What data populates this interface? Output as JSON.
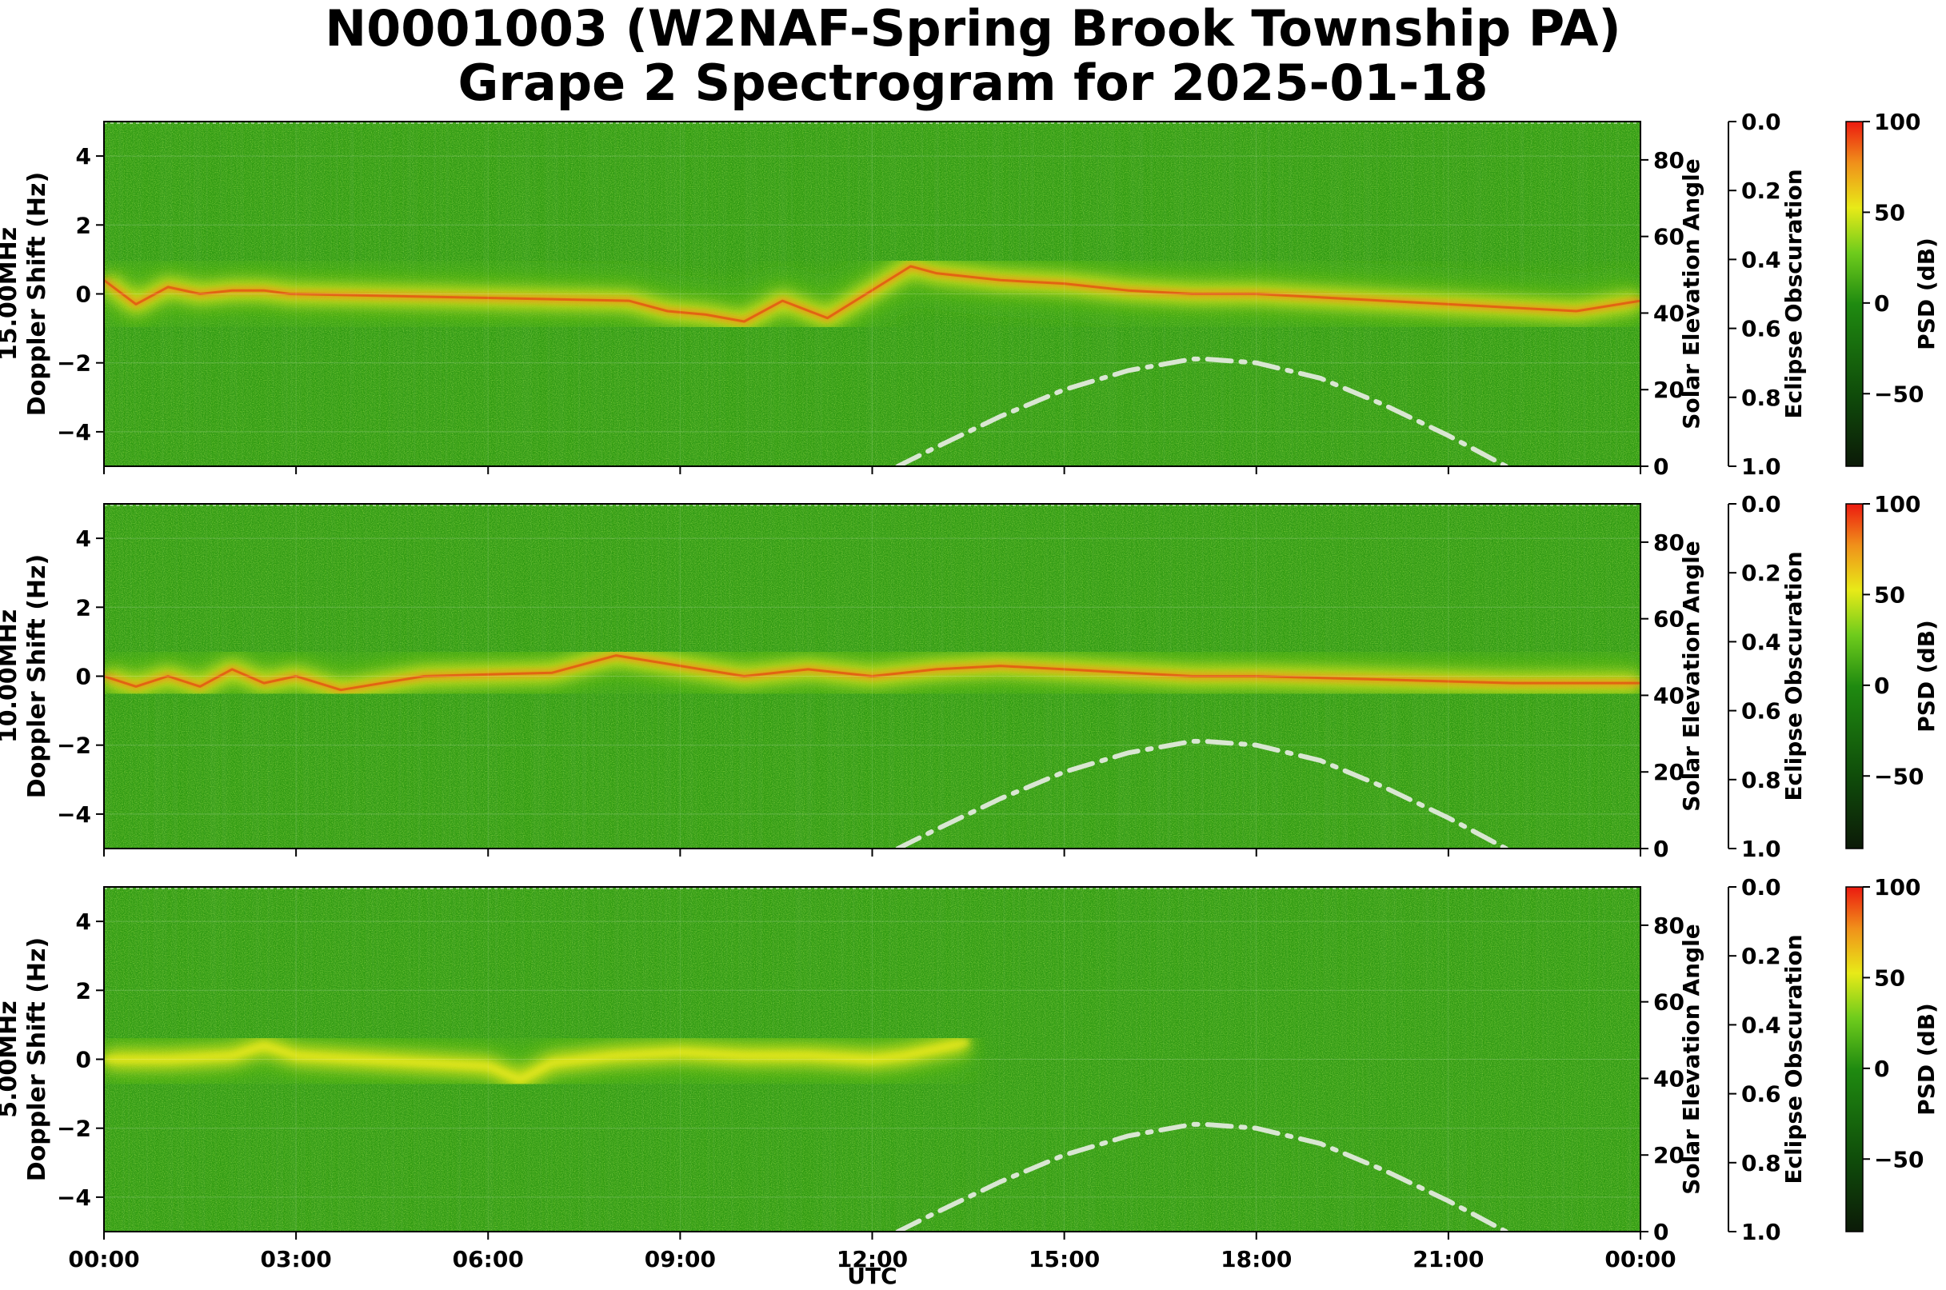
{
  "figure": {
    "title_line1": "N0001003 (W2NAF-Spring Brook Township PA)",
    "title_line2": "Grape 2 Spectrogram for 2025-01-18",
    "xlabel": "UTC"
  },
  "colors": {
    "background_green": "#2f9a12",
    "mid_green": "#5fbf18",
    "yellow": "#e8e81a",
    "orange": "#f08a18",
    "red": "#e82a12",
    "solar_curve": "#d9e6d2"
  },
  "chart_data": [
    {
      "type": "heatmap",
      "panel": "15.00MHz",
      "ylabel_line1": "15.00MHz",
      "ylabel_line2": "Doppler Shift (Hz)",
      "ylabel_right": "Solar Elevation Angle",
      "ylabel_eclipse": "Eclipse Obscuration",
      "colorbar_label": "PSD (dB)",
      "xlim_hours": [
        0,
        24
      ],
      "ylim": [
        -5,
        5
      ],
      "yticks": [
        -4,
        -2,
        0,
        2,
        4
      ],
      "solar_ylim": [
        0,
        90
      ],
      "solar_yticks": [
        0,
        20,
        40,
        60,
        80
      ],
      "eclipse_ylim": [
        1.0,
        0.0
      ],
      "eclipse_yticks": [
        "0.0",
        "0.2",
        "0.4",
        "0.6",
        "0.8",
        "1.0"
      ],
      "colorbar_range": [
        -90,
        100
      ],
      "colorbar_ticks": [
        100,
        50,
        0,
        -50
      ],
      "trace": {
        "x": [
          0.0,
          0.5,
          1.0,
          1.5,
          2.0,
          2.5,
          2.9,
          8.2,
          8.8,
          9.4,
          10.0,
          10.6,
          11.3,
          12.6,
          13.0,
          14.0,
          15.0,
          16.0,
          17.0,
          18.0,
          19.0,
          20.0,
          21.0,
          22.0,
          23.0,
          24.0
        ],
        "y": [
          0.4,
          -0.3,
          0.2,
          0.0,
          0.1,
          0.1,
          0.0,
          -0.2,
          -0.5,
          -0.6,
          -0.8,
          -0.2,
          -0.7,
          0.8,
          0.6,
          0.4,
          0.3,
          0.1,
          0.0,
          0.0,
          -0.1,
          -0.2,
          -0.3,
          -0.4,
          -0.5,
          -0.2
        ]
      },
      "solar_elevation": {
        "x": [
          12.4,
          13.0,
          14.0,
          15.0,
          16.0,
          17.0,
          17.2,
          18.0,
          19.0,
          20.0,
          21.0,
          21.9
        ],
        "y": [
          0,
          5,
          13,
          20,
          25,
          28,
          28,
          27,
          23,
          16,
          8,
          0
        ]
      }
    },
    {
      "type": "heatmap",
      "panel": "10.00MHz",
      "ylabel_line1": "10.00MHz",
      "ylabel_line2": "Doppler Shift (Hz)",
      "ylabel_right": "Solar Elevation Angle",
      "ylabel_eclipse": "Eclipse Obscuration",
      "colorbar_label": "PSD (dB)",
      "xlim_hours": [
        0,
        24
      ],
      "ylim": [
        -5,
        5
      ],
      "yticks": [
        -4,
        -2,
        0,
        2,
        4
      ],
      "solar_ylim": [
        0,
        90
      ],
      "solar_yticks": [
        0,
        20,
        40,
        60,
        80
      ],
      "eclipse_ylim": [
        1.0,
        0.0
      ],
      "eclipse_yticks": [
        "0.0",
        "0.2",
        "0.4",
        "0.6",
        "0.8",
        "1.0"
      ],
      "colorbar_range": [
        -90,
        100
      ],
      "colorbar_ticks": [
        100,
        50,
        0,
        -50
      ],
      "trace": {
        "x": [
          0.0,
          0.5,
          1.0,
          1.5,
          2.0,
          2.5,
          3.0,
          3.7,
          5.0,
          7.0,
          8.0,
          9.0,
          10.0,
          11.0,
          12.0,
          13.0,
          14.0,
          15.0,
          16.0,
          17.0,
          18.0,
          20.0,
          22.0,
          24.0
        ],
        "y": [
          0.0,
          -0.3,
          0.0,
          -0.3,
          0.2,
          -0.2,
          0.0,
          -0.4,
          0.0,
          0.1,
          0.6,
          0.3,
          0.0,
          0.2,
          0.0,
          0.2,
          0.3,
          0.2,
          0.1,
          0.0,
          0.0,
          -0.1,
          -0.2,
          -0.2
        ]
      },
      "solar_elevation": {
        "x": [
          12.4,
          13.0,
          14.0,
          15.0,
          16.0,
          17.0,
          17.2,
          18.0,
          19.0,
          20.0,
          21.0,
          21.9
        ],
        "y": [
          0,
          5,
          13,
          20,
          25,
          28,
          28,
          27,
          23,
          16,
          8,
          0
        ]
      }
    },
    {
      "type": "heatmap",
      "panel": "5.00MHz",
      "ylabel_line1": "5.00MHz",
      "ylabel_line2": "Doppler Shift (Hz)",
      "ylabel_right": "Solar Elevation Angle",
      "ylabel_eclipse": "Eclipse Obscuration",
      "colorbar_label": "PSD (dB)",
      "xlim_hours": [
        0,
        24
      ],
      "ylim": [
        -5,
        5
      ],
      "yticks": [
        -4,
        -2,
        0,
        2,
        4
      ],
      "solar_ylim": [
        0,
        90
      ],
      "solar_yticks": [
        0,
        20,
        40,
        60,
        80
      ],
      "eclipse_ylim": [
        1.0,
        0.0
      ],
      "eclipse_yticks": [
        "0.0",
        "0.2",
        "0.4",
        "0.6",
        "0.8",
        "1.0"
      ],
      "colorbar_range": [
        -90,
        100
      ],
      "colorbar_ticks": [
        100,
        50,
        0,
        -50
      ],
      "trace": {
        "x": [
          0.0,
          1.0,
          2.0,
          2.5,
          3.0,
          4.0,
          5.0,
          6.0,
          6.5,
          7.0,
          8.0,
          9.0,
          10.0,
          11.0,
          12.0,
          12.5,
          13.0,
          13.5
        ],
        "y": [
          0.0,
          0.0,
          0.1,
          0.4,
          0.1,
          0.0,
          -0.1,
          -0.2,
          -0.6,
          -0.1,
          0.1,
          0.2,
          0.1,
          0.1,
          0.0,
          0.1,
          0.3,
          0.5
        ]
      },
      "solar_elevation": {
        "x": [
          12.4,
          13.0,
          14.0,
          15.0,
          16.0,
          17.0,
          17.2,
          18.0,
          19.0,
          20.0,
          21.0,
          21.9
        ],
        "y": [
          0,
          5,
          13,
          20,
          25,
          28,
          28,
          27,
          23,
          16,
          8,
          0
        ]
      }
    }
  ],
  "xticks": [
    "00:00",
    "03:00",
    "06:00",
    "09:00",
    "12:00",
    "15:00",
    "18:00",
    "21:00",
    "00:00"
  ]
}
